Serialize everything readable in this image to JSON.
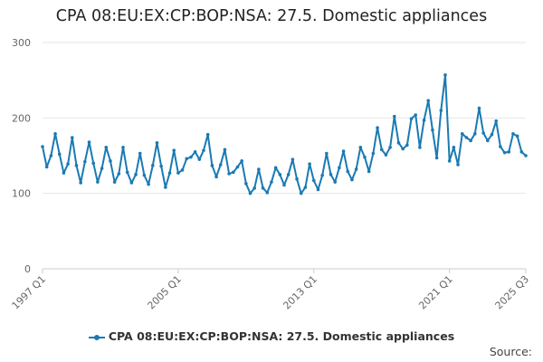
{
  "chart_data": {
    "type": "line",
    "title": "CPA 08:EU:EX:CP:BOP:NSA: 27.5. Domestic appliances",
    "xlabel": "",
    "ylabel": "",
    "ylim": [
      0,
      300
    ],
    "yticks": [
      "0",
      "100",
      "200",
      "300"
    ],
    "x_tick_labels": [
      "1997 Q1",
      "2005 Q1",
      "2013 Q1",
      "2021 Q1",
      "2025 Q3"
    ],
    "x_start": "1997 Q1",
    "x_end": "2025 Q3",
    "grid": true,
    "legend_position": "bottom",
    "series": [
      {
        "name": "CPA 08:EU:EX:CP:BOP:NSA: 27.5. Domestic appliances",
        "color": "#1a7ab3",
        "values": [
          162,
          135,
          150,
          179,
          152,
          127,
          139,
          174,
          137,
          114,
          142,
          168,
          140,
          115,
          133,
          161,
          143,
          115,
          126,
          161,
          128,
          114,
          125,
          153,
          124,
          112,
          137,
          167,
          136,
          108,
          127,
          157,
          127,
          131,
          146,
          148,
          155,
          145,
          157,
          178,
          137,
          122,
          138,
          158,
          126,
          128,
          135,
          143,
          113,
          100,
          107,
          132,
          107,
          101,
          115,
          134,
          125,
          111,
          125,
          145,
          119,
          100,
          108,
          139,
          117,
          105,
          124,
          153,
          125,
          115,
          134,
          156,
          129,
          118,
          132,
          161,
          148,
          129,
          153,
          187,
          158,
          151,
          161,
          202,
          167,
          159,
          164,
          199,
          204,
          161,
          197,
          223,
          184,
          147,
          210,
          257,
          143,
          161,
          138,
          179,
          174,
          170,
          179,
          213,
          180,
          170,
          178,
          196,
          162,
          154,
          155,
          179,
          176,
          155,
          150
        ]
      }
    ]
  },
  "legend": {
    "label": "CPA 08:EU:EX:CP:BOP:NSA: 27.5. Domestic appliances"
  },
  "footer": {
    "source_label": "Source:"
  }
}
